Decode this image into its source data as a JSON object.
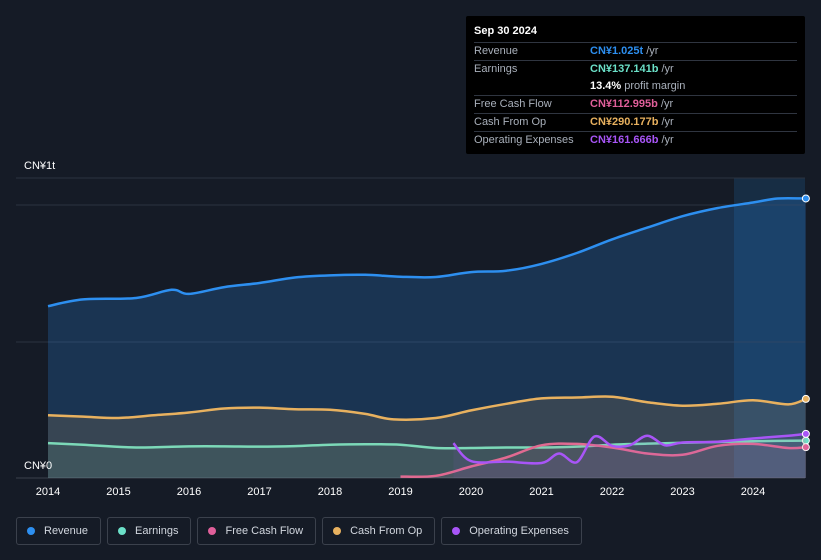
{
  "tooltip": {
    "date": "Sep 30 2024",
    "rows": [
      {
        "label": "Revenue",
        "value": "CN¥1.025t",
        "unit": "/yr",
        "color": "#2d8ff0"
      },
      {
        "label": "Earnings",
        "value": "CN¥137.141b",
        "unit": "/yr",
        "color": "#6be0c8"
      },
      {
        "label": "",
        "value": "13.4%",
        "unit": "profit margin",
        "color": "#ffffff"
      },
      {
        "label": "Free Cash Flow",
        "value": "CN¥112.995b",
        "unit": "/yr",
        "color": "#e05f9a"
      },
      {
        "label": "Cash From Op",
        "value": "CN¥290.177b",
        "unit": "/yr",
        "color": "#e8b15f"
      },
      {
        "label": "Operating Expenses",
        "value": "CN¥161.666b",
        "unit": "/yr",
        "color": "#a855f7"
      }
    ]
  },
  "y_top_label": "CN¥1t",
  "y_bottom_label": "CN¥0",
  "legend": [
    {
      "label": "Revenue",
      "color": "#2d8ff0"
    },
    {
      "label": "Earnings",
      "color": "#6be0c8"
    },
    {
      "label": "Free Cash Flow",
      "color": "#e05f9a"
    },
    {
      "label": "Cash From Op",
      "color": "#e8b15f"
    },
    {
      "label": "Operating Expenses",
      "color": "#a855f7"
    }
  ],
  "chart_data": {
    "type": "area",
    "x_ticks": [
      "2014",
      "2015",
      "2016",
      "2017",
      "2018",
      "2019",
      "2020",
      "2021",
      "2022",
      "2023",
      "2024"
    ],
    "ylim": [
      0,
      1100
    ],
    "y_unit": "CN¥ billions",
    "series": [
      {
        "name": "Revenue",
        "color": "#2d8ff0",
        "x": [
          2014.0,
          2014.5,
          2015.25,
          2015.75,
          2016.0,
          2016.5,
          2017.0,
          2017.5,
          2018.0,
          2018.5,
          2019.0,
          2019.5,
          2020.0,
          2020.5,
          2021.0,
          2021.5,
          2022.0,
          2022.5,
          2023.0,
          2023.5,
          2024.0,
          2024.35,
          2024.75
        ],
        "values": [
          630,
          655,
          660,
          690,
          675,
          700,
          715,
          735,
          743,
          745,
          738,
          737,
          755,
          760,
          785,
          825,
          875,
          918,
          960,
          990,
          1010,
          1025,
          1025
        ]
      },
      {
        "name": "Earnings",
        "color": "#6be0c8",
        "x": [
          2014.0,
          2014.5,
          2015.25,
          2016.0,
          2016.5,
          2017.0,
          2017.5,
          2018.0,
          2018.5,
          2019.0,
          2019.5,
          2020.0,
          2020.5,
          2021.0,
          2021.5,
          2022.0,
          2022.5,
          2023.0,
          2023.5,
          2024.0,
          2024.75
        ],
        "values": [
          128,
          122,
          112,
          116,
          116,
          115,
          117,
          122,
          124,
          122,
          110,
          110,
          112,
          112,
          115,
          122,
          126,
          129,
          132,
          135,
          137
        ]
      },
      {
        "name": "Free Cash Flow",
        "color": "#e05f9a",
        "x": [
          2019.0,
          2019.5,
          2020.0,
          2020.5,
          2021.0,
          2021.5,
          2022.0,
          2022.5,
          2023.0,
          2023.5,
          2024.0,
          2024.5,
          2024.75
        ],
        "values": [
          5,
          8,
          42,
          75,
          120,
          125,
          112,
          90,
          85,
          118,
          125,
          110,
          113
        ]
      },
      {
        "name": "Cash From Op",
        "color": "#e8b15f",
        "x": [
          2014.0,
          2014.5,
          2015.0,
          2015.5,
          2016.0,
          2016.5,
          2017.0,
          2017.5,
          2018.0,
          2018.5,
          2018.9,
          2019.5,
          2020.0,
          2020.5,
          2021.0,
          2021.5,
          2022.0,
          2022.5,
          2023.0,
          2023.5,
          2024.0,
          2024.5,
          2024.75
        ],
        "values": [
          230,
          225,
          220,
          230,
          240,
          255,
          258,
          252,
          250,
          235,
          215,
          220,
          248,
          272,
          292,
          295,
          298,
          278,
          265,
          272,
          285,
          270,
          290
        ]
      },
      {
        "name": "Operating Expenses",
        "color": "#a855f7",
        "x": [
          2019.75,
          2020.0,
          2020.5,
          2021.0,
          2021.25,
          2021.5,
          2021.75,
          2022.0,
          2022.25,
          2022.5,
          2022.75,
          2023.0,
          2023.5,
          2024.0,
          2024.5,
          2024.75
        ],
        "values": [
          128,
          62,
          60,
          55,
          90,
          58,
          152,
          118,
          120,
          155,
          120,
          130,
          133,
          145,
          155,
          162
        ]
      }
    ]
  }
}
